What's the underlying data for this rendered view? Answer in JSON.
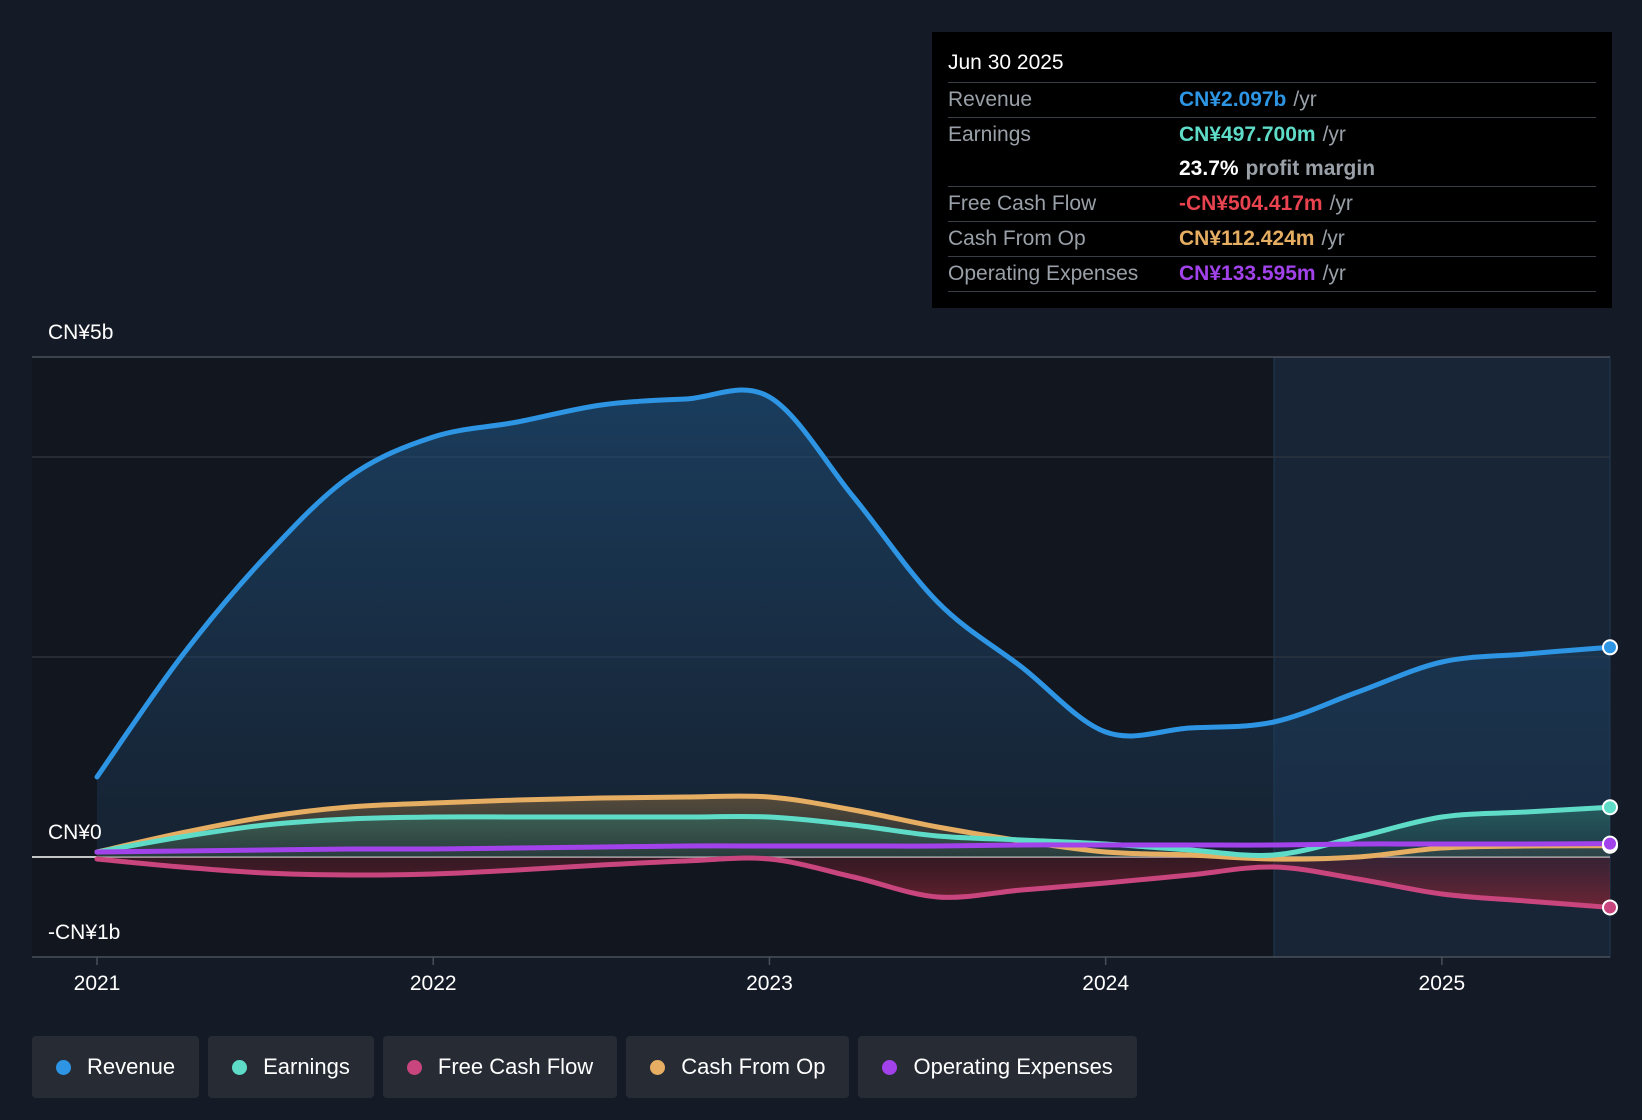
{
  "colors": {
    "revenue": "#2d95e3",
    "earnings": "#5fdcc8",
    "free_cash_flow": "#c9457e",
    "cash_from_op": "#e6ae62",
    "operating_expenses": "#a242ea",
    "background": "#151b26"
  },
  "tooltip": {
    "date": "Jun 30 2025",
    "rows": [
      {
        "label": "Revenue",
        "value": "CN¥2.097b",
        "unit": "/yr"
      },
      {
        "label": "Earnings",
        "value": "CN¥497.700m",
        "unit": "/yr"
      },
      {
        "label": "",
        "value": "23.7%",
        "unit": "profit margin"
      },
      {
        "label": "Free Cash Flow",
        "value": "-CN¥504.417m",
        "unit": "/yr"
      },
      {
        "label": "Cash From Op",
        "value": "CN¥112.424m",
        "unit": "/yr"
      },
      {
        "label": "Operating Expenses",
        "value": "CN¥133.595m",
        "unit": "/yr"
      }
    ]
  },
  "legend": [
    "Revenue",
    "Earnings",
    "Free Cash Flow",
    "Cash From Op",
    "Operating Expenses"
  ],
  "chart_data": {
    "type": "area",
    "title": "",
    "xlabel": "",
    "ylabel": "",
    "ylim": [
      -1,
      5
    ],
    "y_tick_labels": [
      "CN¥5b",
      "CN¥0",
      "-CN¥1b"
    ],
    "x_tick_labels": [
      "2021",
      "2022",
      "2023",
      "2024",
      "2025"
    ],
    "x_range": [
      2021.0,
      2025.5
    ],
    "legend_position": "bottom",
    "grid": true,
    "highlight_region_start": 2024.5,
    "series": [
      {
        "name": "Revenue",
        "x": [
          2021.0,
          2021.25,
          2021.5,
          2021.75,
          2022.0,
          2022.25,
          2022.5,
          2022.75,
          2023.0,
          2023.25,
          2023.5,
          2023.75,
          2024.0,
          2024.25,
          2024.5,
          2024.75,
          2025.0,
          2025.25,
          2025.5
        ],
        "values": [
          0.8,
          2.0,
          3.0,
          3.8,
          4.2,
          4.35,
          4.52,
          4.58,
          4.6,
          3.6,
          2.55,
          1.9,
          1.25,
          1.29,
          1.35,
          1.65,
          1.95,
          2.03,
          2.097
        ]
      },
      {
        "name": "Earnings",
        "x": [
          2021.0,
          2021.25,
          2021.5,
          2021.75,
          2022.0,
          2022.25,
          2022.5,
          2022.75,
          2023.0,
          2023.25,
          2023.5,
          2023.75,
          2024.0,
          2024.25,
          2024.5,
          2024.75,
          2025.0,
          2025.25,
          2025.5
        ],
        "values": [
          0.05,
          0.2,
          0.32,
          0.38,
          0.4,
          0.4,
          0.4,
          0.4,
          0.4,
          0.32,
          0.21,
          0.17,
          0.13,
          0.07,
          0.02,
          0.2,
          0.4,
          0.45,
          0.4977
        ]
      },
      {
        "name": "Free Cash Flow",
        "x": [
          2021.0,
          2021.25,
          2021.5,
          2021.75,
          2022.0,
          2022.25,
          2022.5,
          2022.75,
          2023.0,
          2023.25,
          2023.5,
          2023.75,
          2024.0,
          2024.25,
          2024.5,
          2024.75,
          2025.0,
          2025.25,
          2025.5
        ],
        "values": [
          -0.02,
          -0.1,
          -0.16,
          -0.18,
          -0.17,
          -0.13,
          -0.08,
          -0.04,
          -0.02,
          -0.2,
          -0.4,
          -0.33,
          -0.26,
          -0.18,
          -0.1,
          -0.22,
          -0.37,
          -0.44,
          -0.5044
        ]
      },
      {
        "name": "Cash From Op",
        "x": [
          2021.0,
          2021.25,
          2021.5,
          2021.75,
          2022.0,
          2022.25,
          2022.5,
          2022.75,
          2023.0,
          2023.25,
          2023.5,
          2023.75,
          2024.0,
          2024.25,
          2024.5,
          2024.75,
          2025.0,
          2025.25,
          2025.5
        ],
        "values": [
          0.05,
          0.24,
          0.4,
          0.5,
          0.54,
          0.57,
          0.59,
          0.6,
          0.6,
          0.47,
          0.3,
          0.16,
          0.05,
          0.02,
          -0.02,
          0.0,
          0.09,
          0.11,
          0.1124
        ]
      },
      {
        "name": "Operating Expenses",
        "x": [
          2021.0,
          2021.25,
          2021.5,
          2021.75,
          2022.0,
          2022.25,
          2022.5,
          2022.75,
          2023.0,
          2023.25,
          2023.5,
          2023.75,
          2024.0,
          2024.25,
          2024.5,
          2024.75,
          2025.0,
          2025.25,
          2025.5
        ],
        "values": [
          0.05,
          0.06,
          0.07,
          0.08,
          0.08,
          0.09,
          0.1,
          0.11,
          0.11,
          0.11,
          0.11,
          0.12,
          0.12,
          0.12,
          0.12,
          0.13,
          0.13,
          0.13,
          0.1336
        ]
      }
    ]
  }
}
